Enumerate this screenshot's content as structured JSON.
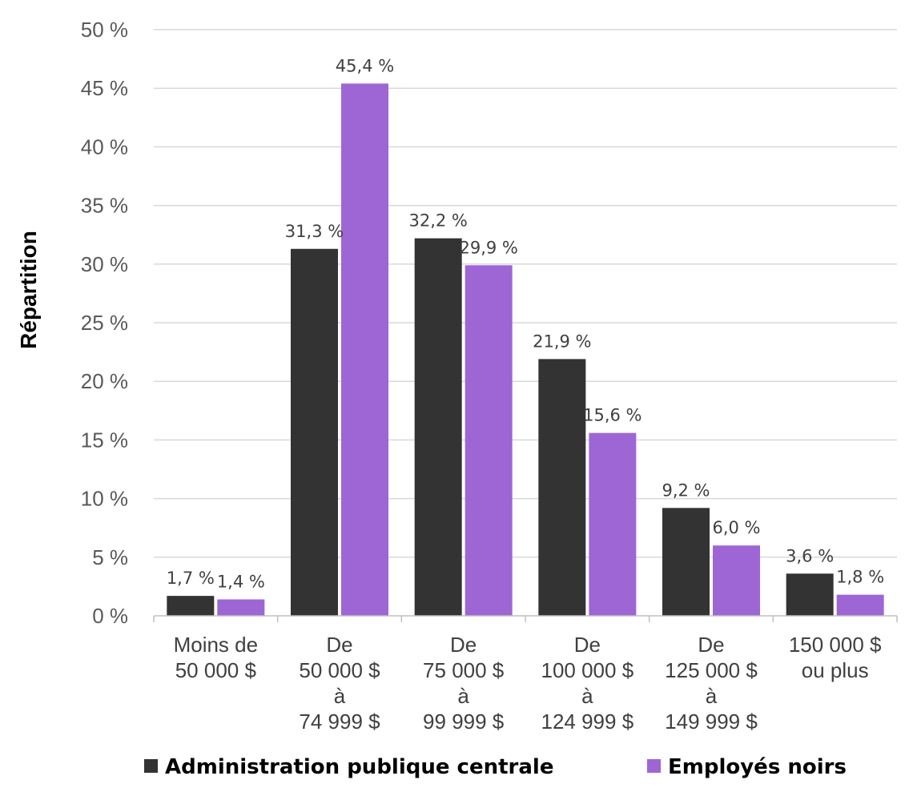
{
  "chart_data": {
    "type": "bar",
    "title": "",
    "ylabel": "Répartition",
    "xlabel": "",
    "ylim": [
      0,
      50
    ],
    "yticks": [
      "0 %",
      "5 %",
      "10 %",
      "15 %",
      "20 %",
      "25 %",
      "30 %",
      "35 %",
      "40 %",
      "45 %",
      "50 %"
    ],
    "grid": true,
    "legend_position": "bottom",
    "categories": [
      [
        "Moins de",
        "50 000 $"
      ],
      [
        "De",
        "50 000 $",
        "à",
        "74 999 $"
      ],
      [
        "De",
        "75 000 $",
        "à",
        "99 999 $"
      ],
      [
        "De",
        "100 000 $",
        "à",
        "124 999 $"
      ],
      [
        "De",
        "125 000 $",
        "à",
        "149 999 $"
      ],
      [
        "150 000 $",
        "ou plus"
      ]
    ],
    "series": [
      {
        "name": "Administration publique centrale",
        "color": "#333333",
        "values": [
          1.7,
          31.3,
          32.2,
          21.9,
          9.2,
          3.6
        ],
        "labels": [
          "1,7 %",
          "31,3 %",
          "32,2 %",
          "21,9 %",
          "9,2 %",
          "3,6 %"
        ]
      },
      {
        "name": "Employés noirs",
        "color": "#9E66D4",
        "values": [
          1.4,
          45.4,
          29.9,
          15.6,
          6.0,
          1.8
        ],
        "labels": [
          "1,4 %",
          "45,4 %",
          "29,9 %",
          "15,6 %",
          "6,0 %",
          "1,8 %"
        ]
      }
    ]
  }
}
